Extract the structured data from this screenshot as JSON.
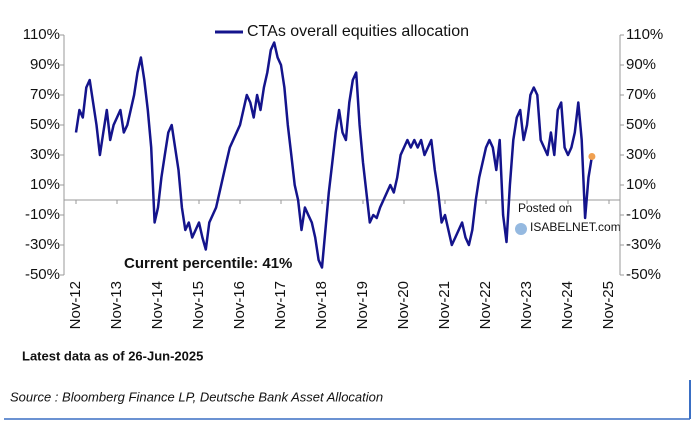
{
  "chart_data": {
    "type": "line",
    "title": "CTAs overall equities allocation",
    "annotation": "Current percentile: 41%",
    "note": "Latest data as of 26-Jun-2025",
    "source": "Source : Bloomberg Finance LP, Deutsche Bank Asset Allocation",
    "watermark": [
      "Posted on",
      "ISABELNET.com"
    ],
    "x": [
      "2012-11",
      "2012-12",
      "2013-01",
      "2013-02",
      "2013-03",
      "2013-04",
      "2013-05",
      "2013-06",
      "2013-07",
      "2013-08",
      "2013-09",
      "2013-10",
      "2013-11",
      "2013-12",
      "2014-01",
      "2014-02",
      "2014-03",
      "2014-04",
      "2014-05",
      "2014-06",
      "2014-07",
      "2014-08",
      "2014-09",
      "2014-10",
      "2014-11",
      "2014-12",
      "2015-01",
      "2015-02",
      "2015-03",
      "2015-04",
      "2015-05",
      "2015-06",
      "2015-07",
      "2015-08",
      "2015-09",
      "2015-10",
      "2015-11",
      "2015-12",
      "2016-01",
      "2016-02",
      "2016-03",
      "2016-04",
      "2016-05",
      "2016-06",
      "2016-07",
      "2016-08",
      "2016-09",
      "2016-10",
      "2016-11",
      "2016-12",
      "2017-01",
      "2017-02",
      "2017-03",
      "2017-04",
      "2017-05",
      "2017-06",
      "2017-07",
      "2017-08",
      "2017-09",
      "2017-10",
      "2017-11",
      "2017-12",
      "2018-01",
      "2018-02",
      "2018-03",
      "2018-04",
      "2018-05",
      "2018-06",
      "2018-07",
      "2018-08",
      "2018-09",
      "2018-10",
      "2018-11",
      "2018-12",
      "2019-01",
      "2019-02",
      "2019-03",
      "2019-04",
      "2019-05",
      "2019-06",
      "2019-07",
      "2019-08",
      "2019-09",
      "2019-10",
      "2019-11",
      "2019-12",
      "2020-01",
      "2020-02",
      "2020-03",
      "2020-04",
      "2020-05",
      "2020-06",
      "2020-07",
      "2020-08",
      "2020-09",
      "2020-10",
      "2020-11",
      "2020-12",
      "2021-01",
      "2021-02",
      "2021-03",
      "2021-04",
      "2021-05",
      "2021-06",
      "2021-07",
      "2021-08",
      "2021-09",
      "2021-10",
      "2021-11",
      "2021-12",
      "2022-01",
      "2022-02",
      "2022-03",
      "2022-04",
      "2022-05",
      "2022-06",
      "2022-07",
      "2022-08",
      "2022-09",
      "2022-10",
      "2022-11",
      "2022-12",
      "2023-01",
      "2023-02",
      "2023-03",
      "2023-04",
      "2023-05",
      "2023-06",
      "2023-07",
      "2023-08",
      "2023-09",
      "2023-10",
      "2023-11",
      "2023-12",
      "2024-01",
      "2024-02",
      "2024-03",
      "2024-04",
      "2024-05",
      "2024-06",
      "2024-07",
      "2024-08",
      "2024-09",
      "2024-10",
      "2024-11",
      "2024-12",
      "2025-01",
      "2025-02",
      "2025-03",
      "2025-04",
      "2025-05",
      "2025-06"
    ],
    "series": [
      {
        "name": "CTAs overall equities allocation",
        "color": "#14148c",
        "values": [
          45,
          60,
          55,
          75,
          80,
          65,
          50,
          30,
          45,
          60,
          40,
          50,
          55,
          60,
          45,
          50,
          60,
          70,
          85,
          95,
          80,
          60,
          35,
          -15,
          -5,
          15,
          30,
          45,
          50,
          35,
          20,
          -5,
          -20,
          -15,
          -25,
          -20,
          -15,
          -25,
          -33,
          -15,
          -10,
          -5,
          5,
          15,
          25,
          35,
          40,
          45,
          50,
          60,
          70,
          65,
          55,
          70,
          60,
          75,
          85,
          100,
          105,
          95,
          90,
          75,
          50,
          30,
          10,
          0,
          -20,
          -5,
          -10,
          -15,
          -25,
          -40,
          -45,
          -20,
          5,
          25,
          45,
          60,
          45,
          40,
          65,
          80,
          85,
          50,
          25,
          5,
          -15,
          -10,
          -12,
          -5,
          0,
          5,
          10,
          5,
          15,
          30,
          35,
          40,
          35,
          40,
          35,
          40,
          30,
          35,
          40,
          20,
          5,
          -15,
          -10,
          -20,
          -30,
          -25,
          -20,
          -15,
          -25,
          -30,
          -20,
          0,
          15,
          25,
          35,
          40,
          35,
          20,
          40,
          -10,
          -28,
          10,
          40,
          55,
          60,
          40,
          50,
          70,
          75,
          70,
          40,
          35,
          30,
          45,
          30,
          60,
          65,
          35,
          30,
          35,
          45,
          65,
          40,
          -12,
          15,
          29
        ]
      }
    ],
    "last_marker_color": "#f0a050",
    "xlim": [
      "2012-11",
      "2025-11"
    ],
    "xticks": [
      {
        "value": "2012-11",
        "label": "Nov-12"
      },
      {
        "value": "2013-11",
        "label": "Nov-13"
      },
      {
        "value": "2014-11",
        "label": "Nov-14"
      },
      {
        "value": "2015-11",
        "label": "Nov-15"
      },
      {
        "value": "2016-11",
        "label": "Nov-16"
      },
      {
        "value": "2017-11",
        "label": "Nov-17"
      },
      {
        "value": "2018-11",
        "label": "Nov-18"
      },
      {
        "value": "2019-11",
        "label": "Nov-19"
      },
      {
        "value": "2020-11",
        "label": "Nov-20"
      },
      {
        "value": "2021-11",
        "label": "Nov-21"
      },
      {
        "value": "2022-11",
        "label": "Nov-22"
      },
      {
        "value": "2023-11",
        "label": "Nov-23"
      },
      {
        "value": "2024-11",
        "label": "Nov-24"
      },
      {
        "value": "2025-11",
        "label": "Nov-25"
      }
    ],
    "ylim": [
      -50,
      110
    ],
    "yticks": [
      {
        "value": 110,
        "label": "110%"
      },
      {
        "value": 90,
        "label": "90%"
      },
      {
        "value": 70,
        "label": "70%"
      },
      {
        "value": 50,
        "label": "50%"
      },
      {
        "value": 30,
        "label": "30%"
      },
      {
        "value": 10,
        "label": "10%"
      },
      {
        "value": -10,
        "label": "-10%"
      },
      {
        "value": -30,
        "label": "-30%"
      },
      {
        "value": -50,
        "label": "-50%"
      }
    ],
    "y2lim": [
      -50,
      110
    ],
    "y2ticks": [
      {
        "value": 110,
        "label": "110%"
      },
      {
        "value": 90,
        "label": "90%"
      },
      {
        "value": 70,
        "label": "70%"
      },
      {
        "value": 50,
        "label": "50%"
      },
      {
        "value": 30,
        "label": "30%"
      },
      {
        "value": 10,
        "label": "10%"
      },
      {
        "value": -10,
        "label": "-10%"
      },
      {
        "value": -30,
        "label": "-30%"
      },
      {
        "value": -50,
        "label": "-50%"
      }
    ]
  }
}
